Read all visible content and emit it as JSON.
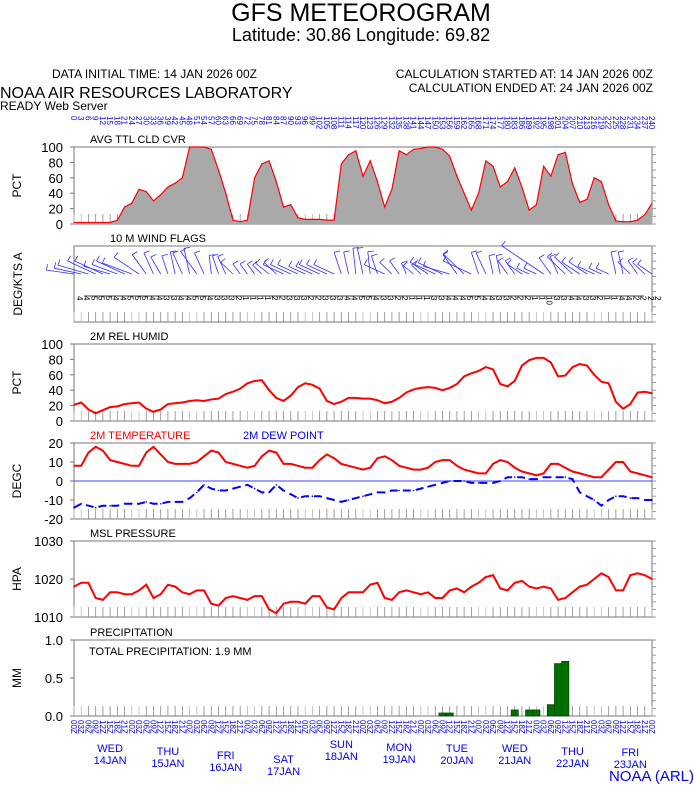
{
  "header": {
    "title": "GFS METEOROGRAM",
    "subtitle": "Latitude: 30.86 Longitude:  69.82",
    "data_initial_time": "DATA INITIAL TIME: 14 JAN 2026 00Z",
    "calc_started": "CALCULATION STARTED AT: 14 JAN 2026 00Z",
    "calc_ended": "CALCULATION ENDED AT: 24 JAN 2026 00Z",
    "org": "NOAA AIR RESOURCES LABORATORY",
    "server": "READY Web Server"
  },
  "footer": {
    "credit": "NOAA (ARL)"
  },
  "days": [
    {
      "dow": "WED",
      "date": "14JAN"
    },
    {
      "dow": "THU",
      "date": "15JAN"
    },
    {
      "dow": "FRI",
      "date": "16JAN"
    },
    {
      "dow": "SAT",
      "date": "17JAN"
    },
    {
      "dow": "SUN",
      "date": "18JAN"
    },
    {
      "dow": "MON",
      "date": "19JAN"
    },
    {
      "dow": "TUE",
      "date": "20JAN"
    },
    {
      "dow": "WED",
      "date": "21JAN"
    },
    {
      "dow": "THU",
      "date": "22JAN"
    },
    {
      "dow": "FRI",
      "date": "23JAN"
    }
  ],
  "colors": {
    "axis_labels": "#0000ff",
    "line": "#ff0000",
    "dew": "#0000ff",
    "cloud_fill": "#a9a9a9",
    "precip": "#007000",
    "wind": "#3030ff"
  },
  "chart_data": [
    {
      "type": "area",
      "title": "AVG TTL CLD CVR",
      "ylabel": "PCT",
      "ylim": [
        0,
        100
      ],
      "yticks": [
        "0",
        "20",
        "40",
        "60",
        "80",
        "100"
      ],
      "x_forecast_hours_step": 3,
      "values": [
        2,
        2,
        2,
        2,
        2,
        2,
        5,
        22,
        27,
        45,
        42,
        30,
        38,
        48,
        53,
        60,
        100,
        100,
        100,
        97,
        70,
        40,
        5,
        3,
        5,
        60,
        78,
        82,
        55,
        22,
        25,
        8,
        6,
        6,
        6,
        5,
        5,
        78,
        90,
        95,
        62,
        82,
        55,
        22,
        45,
        95,
        90,
        97,
        98,
        100,
        100,
        97,
        88,
        62,
        40,
        18,
        40,
        82,
        75,
        48,
        55,
        73,
        48,
        18,
        25,
        75,
        62,
        90,
        93,
        52,
        28,
        32,
        60,
        55,
        25,
        4,
        3,
        3,
        5,
        12,
        27
      ]
    },
    {
      "type": "wind_barbs",
      "title": "10 M  WIND FLAGS",
      "ylabel": "DEG/KTS  A",
      "direction_deg": [
        280,
        285,
        290,
        300,
        300,
        290,
        295,
        300,
        295,
        310,
        330,
        340,
        335,
        345,
        350,
        340,
        350,
        330,
        340,
        355,
        345,
        340,
        320,
        330,
        330,
        330,
        320,
        315,
        320,
        300,
        300,
        300,
        300,
        300,
        300,
        300,
        300,
        345,
        350,
        355,
        350,
        355,
        345,
        300,
        320,
        330,
        340,
        315,
        320,
        310,
        300,
        300,
        290,
        330,
        320,
        300,
        345,
        340,
        350,
        350,
        330,
        330,
        310,
        300,
        300,
        310,
        330,
        340,
        320,
        320,
        310,
        310,
        300,
        300,
        300,
        350,
        350,
        320,
        330,
        320,
        310
      ],
      "speed_kts": [
        4,
        4,
        5,
        5,
        5,
        4,
        4,
        5,
        5,
        5,
        4,
        4,
        3,
        3,
        4,
        4,
        5,
        5,
        4,
        3,
        3,
        3,
        2,
        1,
        1,
        1,
        1,
        2,
        2,
        3,
        3,
        3,
        2,
        2,
        3,
        3,
        3,
        4,
        4,
        5,
        5,
        4,
        3,
        3,
        2,
        2,
        1,
        1,
        1,
        3,
        3,
        4,
        4,
        4,
        5,
        5,
        4,
        4,
        3,
        3,
        2,
        2,
        2,
        1,
        1,
        10,
        3,
        3,
        4,
        4,
        3,
        3,
        2,
        1,
        1,
        4,
        4,
        2,
        2,
        2,
        2
      ]
    },
    {
      "type": "line",
      "title": "2M REL HUMID",
      "ylabel": "PCT",
      "ylim": [
        0,
        100
      ],
      "yticks": [
        "0",
        "20",
        "40",
        "60",
        "80",
        "100"
      ],
      "values": [
        21,
        24,
        15,
        10,
        14,
        18,
        19,
        22,
        23,
        24,
        16,
        12,
        15,
        22,
        23,
        24,
        26,
        27,
        26,
        28,
        29,
        35,
        38,
        42,
        49,
        52,
        53,
        40,
        30,
        26,
        33,
        44,
        49,
        47,
        42,
        26,
        22,
        25,
        30,
        30,
        29,
        29,
        27,
        23,
        25,
        30,
        37,
        41,
        43,
        44,
        43,
        40,
        43,
        48,
        58,
        62,
        65,
        70,
        67,
        48,
        45,
        52,
        72,
        79,
        82,
        82,
        76,
        58,
        59,
        70,
        74,
        72,
        60,
        51,
        49,
        25,
        16,
        22,
        37,
        38,
        36
      ]
    },
    {
      "type": "line",
      "title": "2M TEMPERATURE",
      "title2": "2M  DEW POINT",
      "ylabel": "DEGC",
      "ylim": [
        -20,
        20
      ],
      "yticks": [
        "-20",
        "-10",
        "0",
        "10",
        "20"
      ],
      "series": [
        {
          "name": "2M TEMPERATURE",
          "values": [
            8,
            8,
            15,
            18,
            16,
            11,
            10,
            9,
            8,
            8,
            15,
            18,
            14,
            10,
            9,
            9,
            9,
            10,
            13,
            16,
            15,
            10,
            9,
            8,
            7,
            8,
            13,
            16,
            15,
            9,
            9,
            8,
            7,
            7,
            11,
            14,
            12,
            9,
            8,
            7,
            6,
            7,
            12,
            13,
            11,
            8,
            7,
            6,
            6,
            7,
            10,
            11,
            11,
            8,
            6,
            5,
            4,
            4,
            9,
            11,
            10,
            7,
            5,
            4,
            3,
            4,
            9,
            9,
            7,
            5,
            4,
            3,
            2,
            2,
            6,
            10,
            10,
            5,
            4,
            3,
            2
          ]
        },
        {
          "name": "2M  DEW POINT",
          "values": [
            -14,
            -12,
            -13,
            -14,
            -13,
            -13,
            -13,
            -12,
            -12,
            -12,
            -11,
            -12,
            -12,
            -11,
            -11,
            -11,
            -9,
            -6,
            -2,
            -4,
            -5,
            -5,
            -4,
            -3,
            -2,
            -4,
            -6,
            -6,
            -2,
            -5,
            -7,
            -9,
            -8,
            -8,
            -8,
            -9,
            -10,
            -11,
            -10,
            -9,
            -8,
            -7,
            -6,
            -6,
            -5,
            -5,
            -5,
            -5,
            -4,
            -3,
            -2,
            -1,
            0,
            0,
            0,
            -1,
            -1,
            -1,
            -1,
            0,
            2,
            2,
            2,
            1,
            1,
            2,
            2,
            2,
            2,
            1,
            -6,
            -8,
            -10,
            -13,
            -10,
            -8,
            -8,
            -9,
            -9,
            -10,
            -10
          ]
        }
      ]
    },
    {
      "type": "line",
      "title": "MSL PRESSURE",
      "ylabel": "HPA",
      "ylim": [
        1010,
        1030
      ],
      "yticks": [
        "1010",
        "1020",
        "1030"
      ],
      "values": [
        1018,
        1019,
        1019,
        1015,
        1014.5,
        1016.5,
        1016.5,
        1016,
        1016,
        1017,
        1018.5,
        1015,
        1016,
        1018.5,
        1018,
        1016.5,
        1016,
        1017,
        1017,
        1013.5,
        1013,
        1015,
        1015.5,
        1015,
        1014.5,
        1015.5,
        1015.5,
        1012,
        1011,
        1013.5,
        1014,
        1014,
        1013.5,
        1015.5,
        1015.5,
        1012.5,
        1012,
        1015,
        1016.5,
        1016.5,
        1016.5,
        1018.5,
        1019,
        1015,
        1014.5,
        1016.5,
        1017,
        1016.5,
        1016,
        1016.5,
        1015,
        1015,
        1017,
        1017.5,
        1016.5,
        1018,
        1019,
        1020.5,
        1021,
        1017.5,
        1017,
        1019,
        1019.5,
        1018,
        1017.5,
        1018,
        1017.5,
        1014.5,
        1015,
        1016.5,
        1018,
        1018.5,
        1020,
        1021.5,
        1020.5,
        1017,
        1017,
        1021,
        1021.5,
        1021,
        1020
      ]
    },
    {
      "type": "bar",
      "title": "PRECIPITATION",
      "annotation": "TOTAL PRECIPITATION:   1.9 MM",
      "ylabel": "MM",
      "ylim": [
        0,
        1.0
      ],
      "yticks": [
        "0.0",
        "0.5",
        "1.0"
      ],
      "values": [
        0,
        0,
        0,
        0,
        0,
        0,
        0,
        0,
        0,
        0,
        0,
        0,
        0,
        0,
        0,
        0,
        0,
        0,
        0,
        0,
        0,
        0,
        0,
        0,
        0,
        0,
        0,
        0,
        0,
        0,
        0,
        0,
        0,
        0,
        0,
        0,
        0,
        0,
        0,
        0,
        0,
        0,
        0,
        0,
        0,
        0,
        0,
        0,
        0,
        0,
        0,
        0.04,
        0.04,
        0,
        0,
        0,
        0,
        0,
        0,
        0,
        0,
        0.08,
        0,
        0.08,
        0.08,
        0,
        0.15,
        0.69,
        0.72,
        0,
        0,
        0,
        0,
        0,
        0,
        0,
        0,
        0,
        0,
        0,
        0
      ]
    }
  ],
  "forecast_hours": [
    0,
    3,
    6,
    9,
    12,
    15,
    18,
    21,
    24,
    27,
    30,
    33,
    36,
    39,
    42,
    45,
    48,
    51,
    54,
    57,
    60,
    63,
    66,
    69,
    72,
    75,
    78,
    81,
    84,
    87,
    90,
    93,
    96,
    99,
    102,
    105,
    108,
    111,
    114,
    117,
    120,
    123,
    126,
    129,
    132,
    135,
    138,
    141,
    144,
    147,
    150,
    153,
    156,
    159,
    162,
    165,
    168,
    171,
    174,
    177,
    180,
    183,
    186,
    189,
    192,
    195,
    198,
    201,
    204,
    207,
    210,
    213,
    216,
    219,
    222,
    225,
    228,
    231,
    234,
    237,
    240
  ],
  "hour_labels": [
    "00Z",
    "03Z",
    "06Z",
    "09Z",
    "12Z",
    "15Z",
    "18Z",
    "21Z"
  ]
}
